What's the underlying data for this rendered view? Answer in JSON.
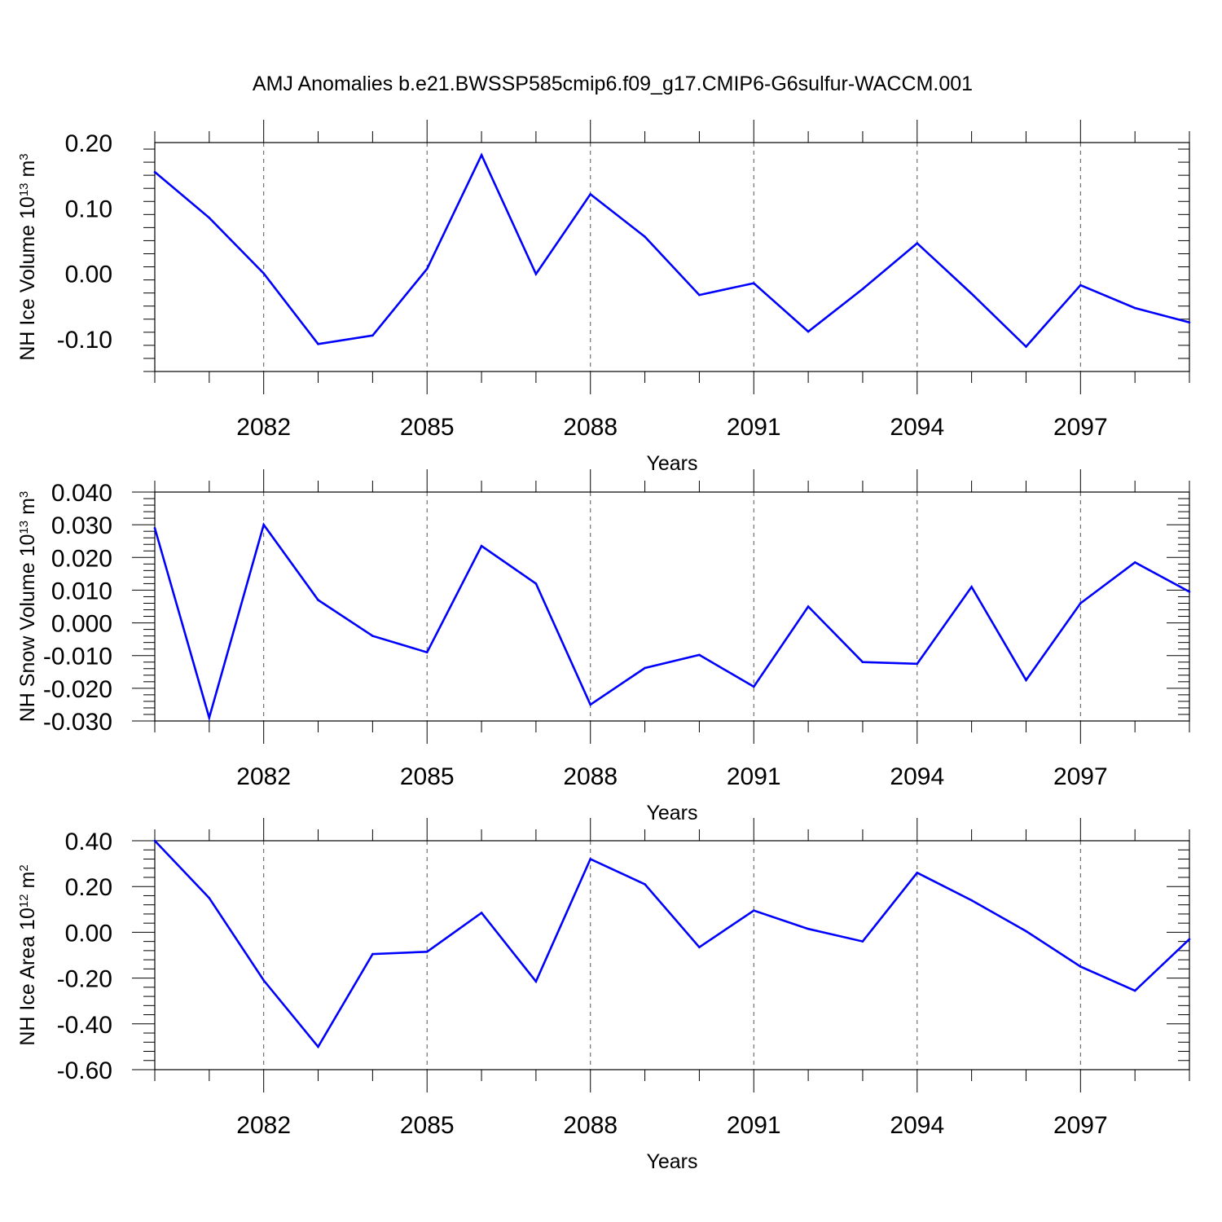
{
  "title": "AMJ Anomalies b.e21.BWSSP585cmip6.f09_g17.CMIP6-G6sulfur-WACCM.001",
  "colors": {
    "series": "#0000ff",
    "axis": "#000000",
    "grid": "#555555"
  },
  "chart_data": [
    {
      "type": "line",
      "ylabel": {
        "text": "NH Ice Volume 10",
        "exp": "13",
        "unit": " m",
        "unit_exp": "3"
      },
      "xlabel": "Years",
      "ylim": [
        -0.15,
        0.2
      ],
      "yticks": [
        -0.1,
        0.0,
        0.1,
        0.2
      ],
      "ytick_labels": [
        "-0.10",
        "0.00",
        "0.10",
        "0.20"
      ],
      "xlim": [
        2080,
        2099
      ],
      "xticks": [
        2082,
        2085,
        2088,
        2091,
        2094,
        2097
      ],
      "xtick_labels": [
        "2082",
        "2085",
        "2088",
        "2091",
        "2094",
        "2097"
      ],
      "grid": "vertical-dashed",
      "series": [
        {
          "x": [
            2080,
            2081,
            2082,
            2083,
            2084,
            2085,
            2086,
            2087,
            2088,
            2089,
            2090,
            2091,
            2092,
            2093,
            2094,
            2095,
            2096,
            2097,
            2098,
            2099
          ],
          "values": [
            0.155,
            0.085,
            0.0,
            -0.108,
            -0.095,
            0.007,
            0.181,
            -0.001,
            0.121,
            0.056,
            -0.033,
            -0.015,
            -0.089,
            -0.024,
            0.046,
            -0.031,
            -0.112,
            -0.018,
            -0.053,
            -0.075
          ]
        }
      ]
    },
    {
      "type": "line",
      "ylabel": {
        "text": "NH Snow Volume 10",
        "exp": "13",
        "unit": " m",
        "unit_exp": "3"
      },
      "xlabel": "Years",
      "ylim": [
        -0.03,
        0.04
      ],
      "yticks": [
        -0.03,
        -0.02,
        -0.01,
        0.0,
        0.01,
        0.02,
        0.03,
        0.04
      ],
      "ytick_labels": [
        "-0.030",
        "-0.020",
        "-0.010",
        "0.000",
        "0.010",
        "0.020",
        "0.030",
        "0.040"
      ],
      "xlim": [
        2080,
        2099
      ],
      "xticks": [
        2082,
        2085,
        2088,
        2091,
        2094,
        2097
      ],
      "xtick_labels": [
        "2082",
        "2085",
        "2088",
        "2091",
        "2094",
        "2097"
      ],
      "grid": "vertical-dashed",
      "series": [
        {
          "x": [
            2080,
            2081,
            2082,
            2083,
            2084,
            2085,
            2086,
            2087,
            2088,
            2089,
            2090,
            2091,
            2092,
            2093,
            2094,
            2095,
            2096,
            2097,
            2098,
            2099
          ],
          "values": [
            0.029,
            -0.029,
            0.03,
            0.007,
            -0.004,
            -0.009,
            0.0235,
            0.012,
            -0.025,
            -0.0138,
            -0.0098,
            -0.0195,
            0.005,
            -0.012,
            -0.0125,
            0.011,
            -0.0175,
            0.006,
            0.0185,
            0.0095
          ]
        }
      ]
    },
    {
      "type": "line",
      "ylabel": {
        "text": "NH Ice Area 10",
        "exp": "12",
        "unit": " m",
        "unit_exp": "2"
      },
      "xlabel": "Years",
      "ylim": [
        -0.6,
        0.4
      ],
      "yticks": [
        -0.6,
        -0.4,
        -0.2,
        0.0,
        0.2,
        0.4
      ],
      "ytick_labels": [
        "-0.60",
        "-0.40",
        "-0.20",
        "0.00",
        "0.20",
        "0.40"
      ],
      "xlim": [
        2080,
        2099
      ],
      "xticks": [
        2082,
        2085,
        2088,
        2091,
        2094,
        2097
      ],
      "xtick_labels": [
        "2082",
        "2085",
        "2088",
        "2091",
        "2094",
        "2097"
      ],
      "grid": "vertical-dashed",
      "series": [
        {
          "x": [
            2080,
            2081,
            2082,
            2083,
            2084,
            2085,
            2086,
            2087,
            2088,
            2089,
            2090,
            2091,
            2092,
            2093,
            2094,
            2095,
            2096,
            2097,
            2098,
            2099
          ],
          "values": [
            0.4,
            0.15,
            -0.21,
            -0.5,
            -0.095,
            -0.085,
            0.085,
            -0.215,
            0.32,
            0.21,
            -0.065,
            0.095,
            0.015,
            -0.04,
            0.26,
            0.14,
            0.005,
            -0.15,
            -0.255,
            -0.03
          ]
        }
      ]
    }
  ]
}
